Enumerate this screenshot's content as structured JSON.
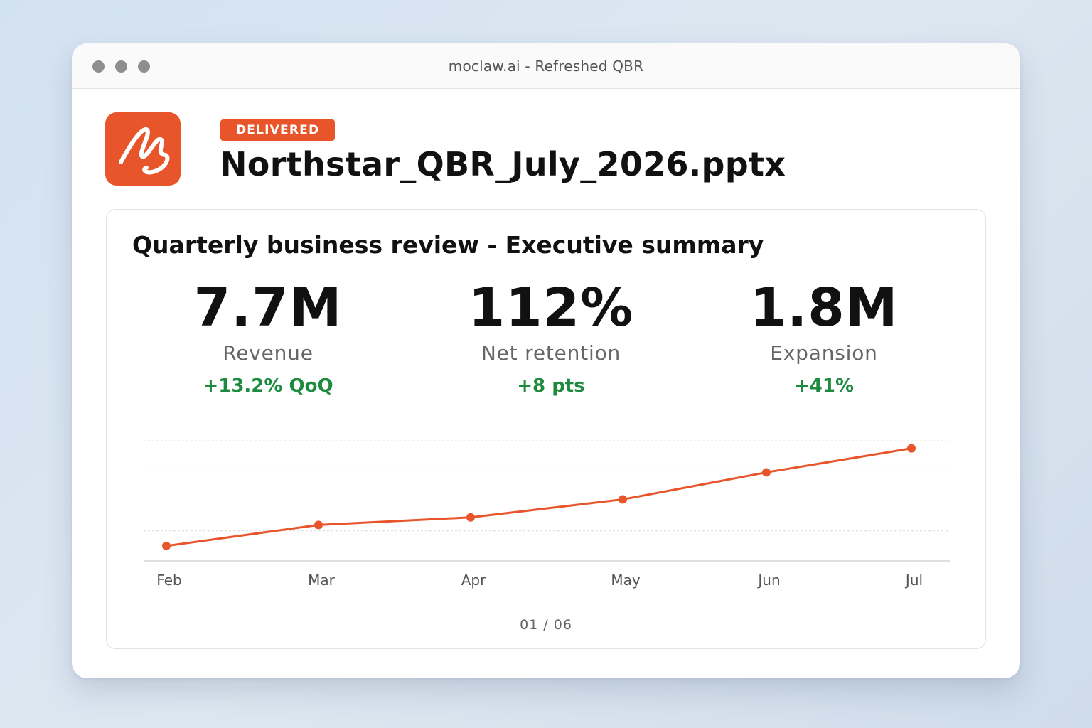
{
  "window": {
    "title": "moclaw.ai - Refreshed QBR"
  },
  "header": {
    "badge": "DELIVERED",
    "file_name": "Northstar_QBR_July_2026.pptx",
    "logo_icon": "moclaw-logo-icon",
    "accent": "#e8552a"
  },
  "slide": {
    "title": "Quarterly business review - Executive summary",
    "kpis": [
      {
        "value": "7.7M",
        "label": "Revenue",
        "delta": "+13.2% QoQ"
      },
      {
        "value": "112%",
        "label": "Net retention",
        "delta": "+8 pts"
      },
      {
        "value": "1.8M",
        "label": "Expansion",
        "delta": "+41%"
      }
    ],
    "page": {
      "current": "01",
      "total": "06"
    }
  },
  "chart_data": {
    "type": "line",
    "categories": [
      "Feb",
      "Mar",
      "Apr",
      "May",
      "Jun",
      "Jul"
    ],
    "values": [
      0.5,
      1.2,
      1.45,
      2.05,
      2.95,
      3.75
    ],
    "ylim": [
      0,
      4.5
    ],
    "grid": true,
    "color": "#e8552a"
  }
}
